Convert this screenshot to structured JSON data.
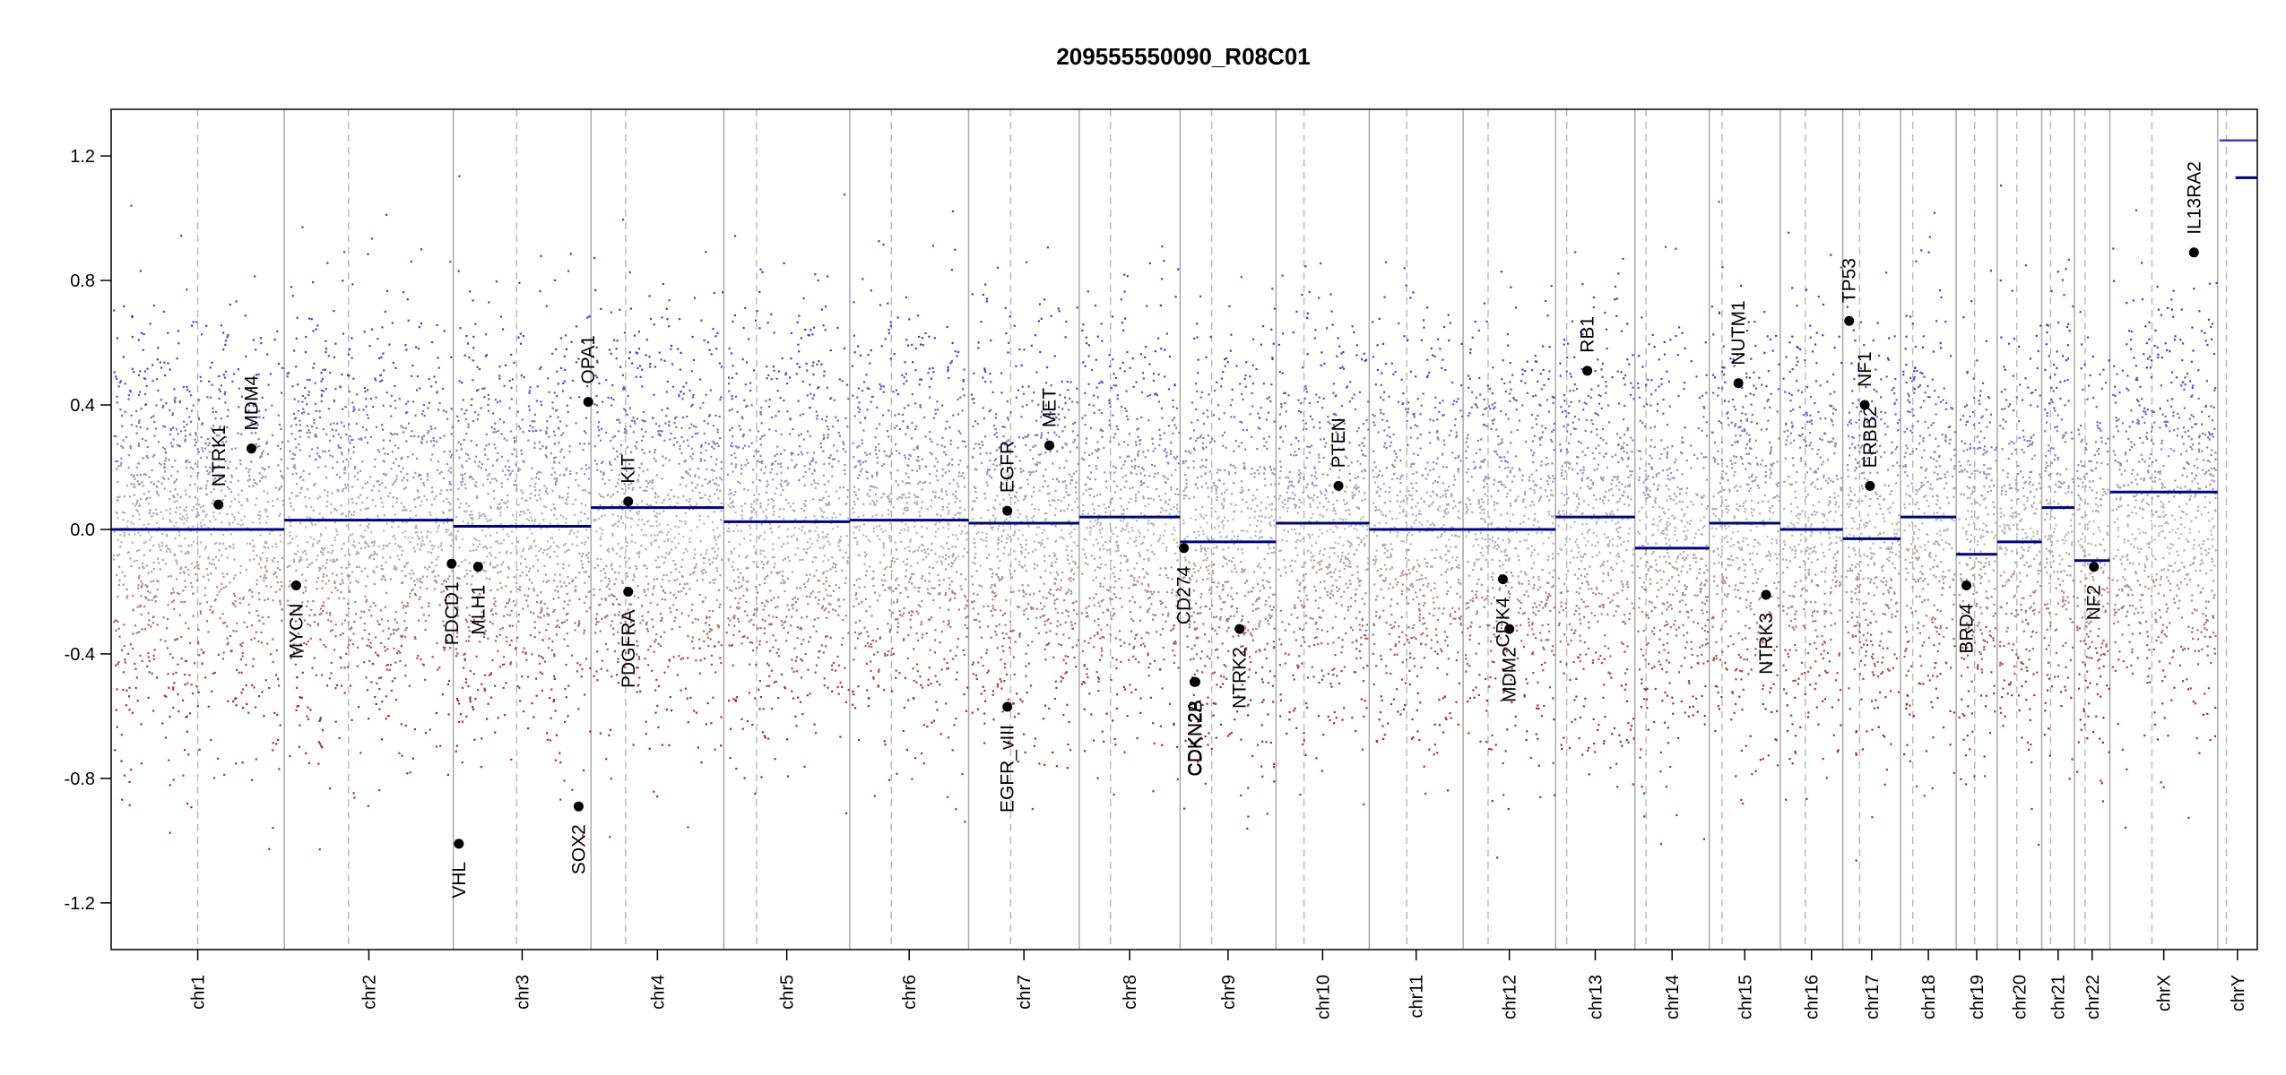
{
  "chart_data": {
    "type": "scatter",
    "title": "209555550090_R08C01",
    "xlabel": "",
    "ylabel": "",
    "ylim": [
      -1.35,
      1.35
    ],
    "y_ticks": [
      {
        "value": 1.2,
        "label": "1.2"
      },
      {
        "value": 0.8,
        "label": "0.8"
      },
      {
        "value": 0.4,
        "label": "0.4"
      },
      {
        "value": 0.0,
        "label": "0.0"
      },
      {
        "value": -0.4,
        "label": "-0.4"
      },
      {
        "value": -0.8,
        "label": "-0.8"
      },
      {
        "value": -1.2,
        "label": "-1.2"
      }
    ],
    "grid": false,
    "point_colors": {
      "gain": "#3f3fc8",
      "loss": "#a52a2a",
      "neutral": "#bbbbbb"
    },
    "segment_color": "#00008b",
    "chromosomes": [
      {
        "name": "chr1",
        "length": 249,
        "centromere": 0.5,
        "segment": 0.0
      },
      {
        "name": "chr2",
        "length": 243,
        "centromere": 0.38,
        "segment": 0.03
      },
      {
        "name": "chr3",
        "length": 198,
        "centromere": 0.46,
        "segment": 0.01
      },
      {
        "name": "chr4",
        "length": 191,
        "centromere": 0.26,
        "segment": 0.07
      },
      {
        "name": "chr5",
        "length": 181,
        "centromere": 0.26,
        "segment": 0.025
      },
      {
        "name": "chr6",
        "length": 171,
        "centromere": 0.35,
        "segment": 0.03
      },
      {
        "name": "chr7",
        "length": 159,
        "centromere": 0.38,
        "segment": 0.02
      },
      {
        "name": "chr8",
        "length": 145,
        "centromere": 0.31,
        "segment": 0.04
      },
      {
        "name": "chr9",
        "length": 138,
        "centromere": 0.33,
        "segment": -0.04
      },
      {
        "name": "chr10",
        "length": 134,
        "centromere": 0.3,
        "segment": 0.02
      },
      {
        "name": "chr11",
        "length": 135,
        "centromere": 0.4,
        "segment": 0.0
      },
      {
        "name": "chr12",
        "length": 133,
        "centromere": 0.27,
        "segment": 0.0
      },
      {
        "name": "chr13",
        "length": 114,
        "centromere": 0.14,
        "segment": 0.04
      },
      {
        "name": "chr14",
        "length": 107,
        "centromere": 0.15,
        "segment": -0.06
      },
      {
        "name": "chr15",
        "length": 102,
        "centromere": 0.18,
        "segment": 0.02
      },
      {
        "name": "chr16",
        "length": 90,
        "centromere": 0.4,
        "segment": 0.0
      },
      {
        "name": "chr17",
        "length": 83,
        "centromere": 0.29,
        "segment": -0.03
      },
      {
        "name": "chr18",
        "length": 80,
        "centromere": 0.22,
        "segment": 0.04
      },
      {
        "name": "chr19",
        "length": 59,
        "centromere": 0.45,
        "segment": -0.08
      },
      {
        "name": "chr20",
        "length": 64,
        "centromere": 0.44,
        "segment": -0.04
      },
      {
        "name": "chr21",
        "length": 47,
        "centromere": 0.27,
        "segment": 0.07
      },
      {
        "name": "chr22",
        "length": 51,
        "centromere": 0.3,
        "segment": -0.1
      },
      {
        "name": "chrX",
        "length": 155,
        "centromere": 0.39,
        "segment": 0.12
      },
      {
        "name": "chrY",
        "length": 57,
        "centromere": 0.22,
        "segment": 1.13,
        "segment_start": 0.45
      }
    ],
    "genes": [
      {
        "name": "NTRK1",
        "chr": "chr1",
        "pos": 0.62,
        "value": 0.08
      },
      {
        "name": "MDM4",
        "chr": "chr1",
        "pos": 0.81,
        "value": 0.26
      },
      {
        "name": "MYCN",
        "chr": "chr2",
        "pos": 0.07,
        "value": -0.18
      },
      {
        "name": "PDCD1",
        "chr": "chr2",
        "pos": 0.99,
        "value": -0.11
      },
      {
        "name": "VHL",
        "chr": "chr3",
        "pos": 0.04,
        "value": -1.01
      },
      {
        "name": "MLH1",
        "chr": "chr3",
        "pos": 0.18,
        "value": -0.12
      },
      {
        "name": "SOX2",
        "chr": "chr3",
        "pos": 0.91,
        "value": -0.89
      },
      {
        "name": "OPA1",
        "chr": "chr3",
        "pos": 0.98,
        "value": 0.41
      },
      {
        "name": "KIT",
        "chr": "chr4",
        "pos": 0.28,
        "value": 0.09
      },
      {
        "name": "PDGFRA",
        "chr": "chr4",
        "pos": 0.28,
        "value": -0.2
      },
      {
        "name": "EGFR",
        "chr": "chr7",
        "pos": 0.35,
        "value": 0.06
      },
      {
        "name": "EGFR_vIII",
        "chr": "chr7",
        "pos": 0.35,
        "value": -0.57
      },
      {
        "name": "MET",
        "chr": "chr7",
        "pos": 0.73,
        "value": 0.27
      },
      {
        "name": "CD274",
        "chr": "chr9",
        "pos": 0.04,
        "value": -0.06
      },
      {
        "name": "CDKN2A",
        "chr": "chr9",
        "pos": 0.15,
        "value": -0.49
      },
      {
        "name": "CDKN2B",
        "chr": "chr9",
        "pos": 0.16,
        "value": -0.49
      },
      {
        "name": "NTRK2",
        "chr": "chr9",
        "pos": 0.62,
        "value": -0.32
      },
      {
        "name": "PTEN",
        "chr": "chr10",
        "pos": 0.67,
        "value": 0.14
      },
      {
        "name": "CDK4",
        "chr": "chr12",
        "pos": 0.43,
        "value": -0.16
      },
      {
        "name": "MDM2",
        "chr": "chr12",
        "pos": 0.5,
        "value": -0.32
      },
      {
        "name": "RB1",
        "chr": "chr13",
        "pos": 0.4,
        "value": 0.51
      },
      {
        "name": "NUTM1",
        "chr": "chr15",
        "pos": 0.41,
        "value": 0.47
      },
      {
        "name": "NTRK3",
        "chr": "chr15",
        "pos": 0.8,
        "value": -0.21
      },
      {
        "name": "TP53",
        "chr": "chr17",
        "pos": 0.11,
        "value": 0.67
      },
      {
        "name": "NF1",
        "chr": "chr17",
        "pos": 0.38,
        "value": 0.4
      },
      {
        "name": "ERBB2",
        "chr": "chr17",
        "pos": 0.47,
        "value": 0.14
      },
      {
        "name": "BRD4",
        "chr": "chr19",
        "pos": 0.25,
        "value": -0.18
      },
      {
        "name": "NF2",
        "chr": "chr22",
        "pos": 0.55,
        "value": -0.12
      },
      {
        "name": "IL13RA2",
        "chr": "chrX",
        "pos": 0.78,
        "value": 0.89
      }
    ]
  }
}
